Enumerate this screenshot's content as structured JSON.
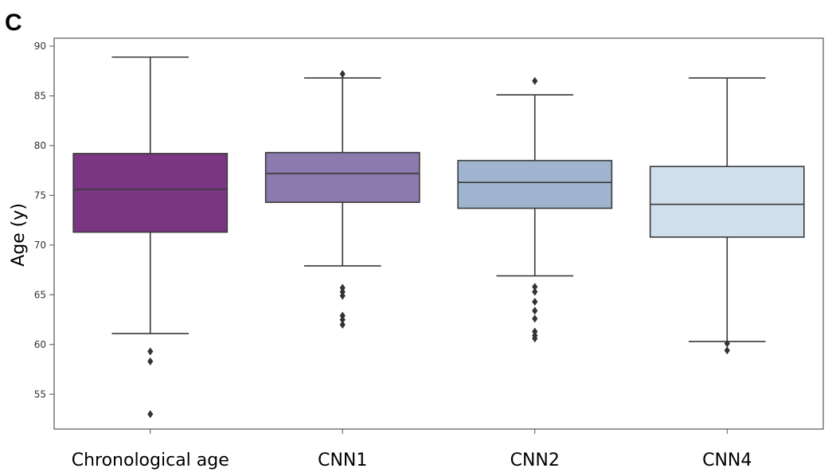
{
  "panel_label": "C",
  "chart_data": {
    "type": "box",
    "title": "",
    "ylabel": "Age (y)",
    "xlabel": "",
    "ylim": [
      51.5,
      90.8
    ],
    "yticks": [
      55,
      60,
      65,
      70,
      75,
      80,
      85,
      90
    ],
    "grid": false,
    "legend": "none",
    "categories": [
      "Chronological age",
      "CNN1",
      "CNN2",
      "CNN4"
    ],
    "boxes": [
      {
        "category": "Chronological age",
        "color": "#7a3583",
        "whisker_low": 61.1,
        "q1": 71.3,
        "median": 75.6,
        "q3": 79.2,
        "whisker_high": 88.9,
        "outliers": [
          59.3,
          58.3,
          53.0
        ]
      },
      {
        "category": "CNN1",
        "color": "#8c7aae",
        "whisker_low": 67.9,
        "q1": 74.3,
        "median": 77.2,
        "q3": 79.3,
        "whisker_high": 86.8,
        "outliers": [
          87.2,
          65.7,
          65.3,
          64.9,
          62.9,
          62.5,
          62.0
        ]
      },
      {
        "category": "CNN2",
        "color": "#9fb4ce",
        "whisker_low": 66.9,
        "q1": 73.7,
        "median": 76.3,
        "q3": 78.5,
        "whisker_high": 85.1,
        "outliers": [
          86.5,
          65.8,
          65.3,
          64.3,
          63.4,
          62.6,
          61.3,
          60.9,
          60.6
        ]
      },
      {
        "category": "CNN4",
        "color": "#d1deeb",
        "whisker_low": 60.3,
        "q1": 70.8,
        "median": 74.1,
        "q3": 77.9,
        "whisker_high": 86.8,
        "outliers": [
          60.1,
          59.4
        ]
      }
    ]
  }
}
